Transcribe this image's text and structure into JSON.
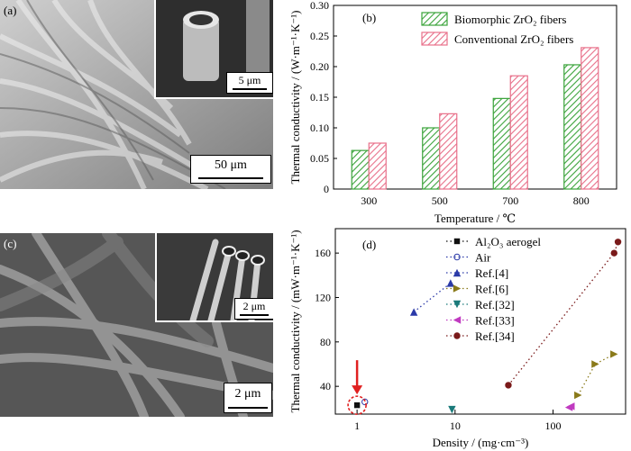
{
  "panel_a": {
    "label": "(a)",
    "scale_main": "50 μm",
    "scale_inset": "5 μm"
  },
  "panel_c": {
    "label": "(c)",
    "scale_main": "2 μm",
    "scale_inset": "2 μm"
  },
  "chart_data": [
    {
      "type": "bar",
      "panel_label": "(b)",
      "xlabel": "Temperature / ℃",
      "ylabel": "Thermal conductivity / (W·m⁻¹·K⁻¹)",
      "categories": [
        "300",
        "500",
        "700",
        "800"
      ],
      "ylim": [
        0,
        0.3
      ],
      "yticks": [
        "0",
        "0.05",
        "0.10",
        "0.15",
        "0.20",
        "0.25",
        "0.30"
      ],
      "series": [
        {
          "name": "Biomorphic ZrO₂ fibers",
          "color": "#3aa33a",
          "values": [
            0.063,
            0.1,
            0.148,
            0.203
          ]
        },
        {
          "name": "Conventional ZrO₂ fibers",
          "color": "#e8708a",
          "values": [
            0.075,
            0.123,
            0.185,
            0.231
          ]
        }
      ]
    },
    {
      "type": "scatter",
      "panel_label": "(d)",
      "xlabel": "Density / (mg·cm⁻³)",
      "ylabel": "Thermal conductivity / (mW·m⁻¹·K⁻¹)",
      "xscale": "log",
      "xticks": [
        "1",
        "10",
        "100"
      ],
      "yticks": [
        "40",
        "80",
        "120",
        "160"
      ],
      "xlim": [
        0.6,
        550
      ],
      "ylim": [
        15,
        182
      ],
      "series": [
        {
          "name": "Al₂O₃ aerogel",
          "marker": "square",
          "color": "#111111",
          "points": [
            [
              1.0,
              23
            ]
          ]
        },
        {
          "name": "Air",
          "marker": "circle-open",
          "color": "#2b3aa8",
          "points": [
            [
              1.2,
              26
            ]
          ]
        },
        {
          "name": "Ref.[4]",
          "marker": "triangle-up",
          "color": "#2b3aa8",
          "points": [
            [
              3.8,
              107
            ],
            [
              9.0,
              133
            ]
          ]
        },
        {
          "name": "Ref.[6]",
          "marker": "triangle-right",
          "color": "#8a7a1a",
          "points": [
            [
              180,
              32
            ],
            [
              270,
              60
            ],
            [
              420,
              69
            ]
          ]
        },
        {
          "name": "Ref.[32]",
          "marker": "triangle-down",
          "color": "#1a7a7a",
          "points": [
            [
              9.3,
              19
            ]
          ]
        },
        {
          "name": "Ref.[33]",
          "marker": "triangle-left",
          "color": "#c03ac0",
          "points": [
            [
              145,
              21
            ],
            [
              152,
              22
            ]
          ]
        },
        {
          "name": "Ref.[34]",
          "marker": "circle",
          "color": "#7a1a1a",
          "points": [
            [
              35,
              41
            ],
            [
              420,
              160
            ],
            [
              460,
              170
            ]
          ]
        }
      ]
    }
  ]
}
